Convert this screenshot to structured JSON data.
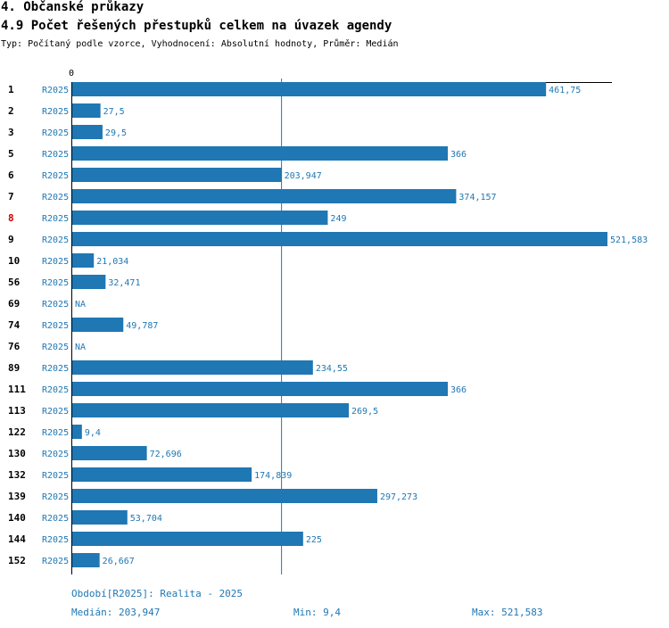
{
  "header": {
    "section": "4. Občanské průkazy",
    "title": "4.9 Počet řešených přestupků celkem na úvazek agendy",
    "subtitle": "Typ: Počítaný podle vzorce, Vyhodnocení: Absolutní hodnoty, Průměr: Medián"
  },
  "colors": {
    "bar": "#1f77b4",
    "text": "#000000",
    "highlight": "#cc0000",
    "axis": "#000000"
  },
  "chart_data": {
    "type": "bar",
    "orientation": "horizontal",
    "axis_zero_label": "0",
    "xlim": [
      0,
      521.583
    ],
    "median": 203.947,
    "categories": [
      "1",
      "2",
      "3",
      "5",
      "6",
      "7",
      "8",
      "9",
      "10",
      "56",
      "69",
      "74",
      "76",
      "89",
      "111",
      "113",
      "122",
      "130",
      "132",
      "139",
      "140",
      "144",
      "152"
    ],
    "series_labels": [
      "R2025",
      "R2025",
      "R2025",
      "R2025",
      "R2025",
      "R2025",
      "R2025",
      "R2025",
      "R2025",
      "R2025",
      "R2025",
      "R2025",
      "R2025",
      "R2025",
      "R2025",
      "R2025",
      "R2025",
      "R2025",
      "R2025",
      "R2025",
      "R2025",
      "R2025",
      "R2025"
    ],
    "values": [
      461.75,
      27.5,
      29.5,
      366,
      203.947,
      374.157,
      249,
      521.583,
      21.034,
      32.471,
      null,
      49.787,
      null,
      234.55,
      366,
      269.5,
      9.4,
      72.696,
      174.839,
      297.273,
      53.704,
      225,
      26.667
    ],
    "value_labels": [
      "461,75",
      "27,5",
      "29,5",
      "366",
      "203,947",
      "374,157",
      "249",
      "521,583",
      "21,034",
      "32,471",
      "NA",
      "49,787",
      "NA",
      "234,55",
      "366",
      "269,5",
      "9,4",
      "72,696",
      "174,839",
      "297,273",
      "53,704",
      "225",
      "26,667"
    ],
    "highlight_category": "8"
  },
  "footer": {
    "period": "Období[R2025]: Realita - 2025",
    "median": "Medián: 203,947",
    "min": "Min: 9,4",
    "max": "Max: 521,583"
  }
}
